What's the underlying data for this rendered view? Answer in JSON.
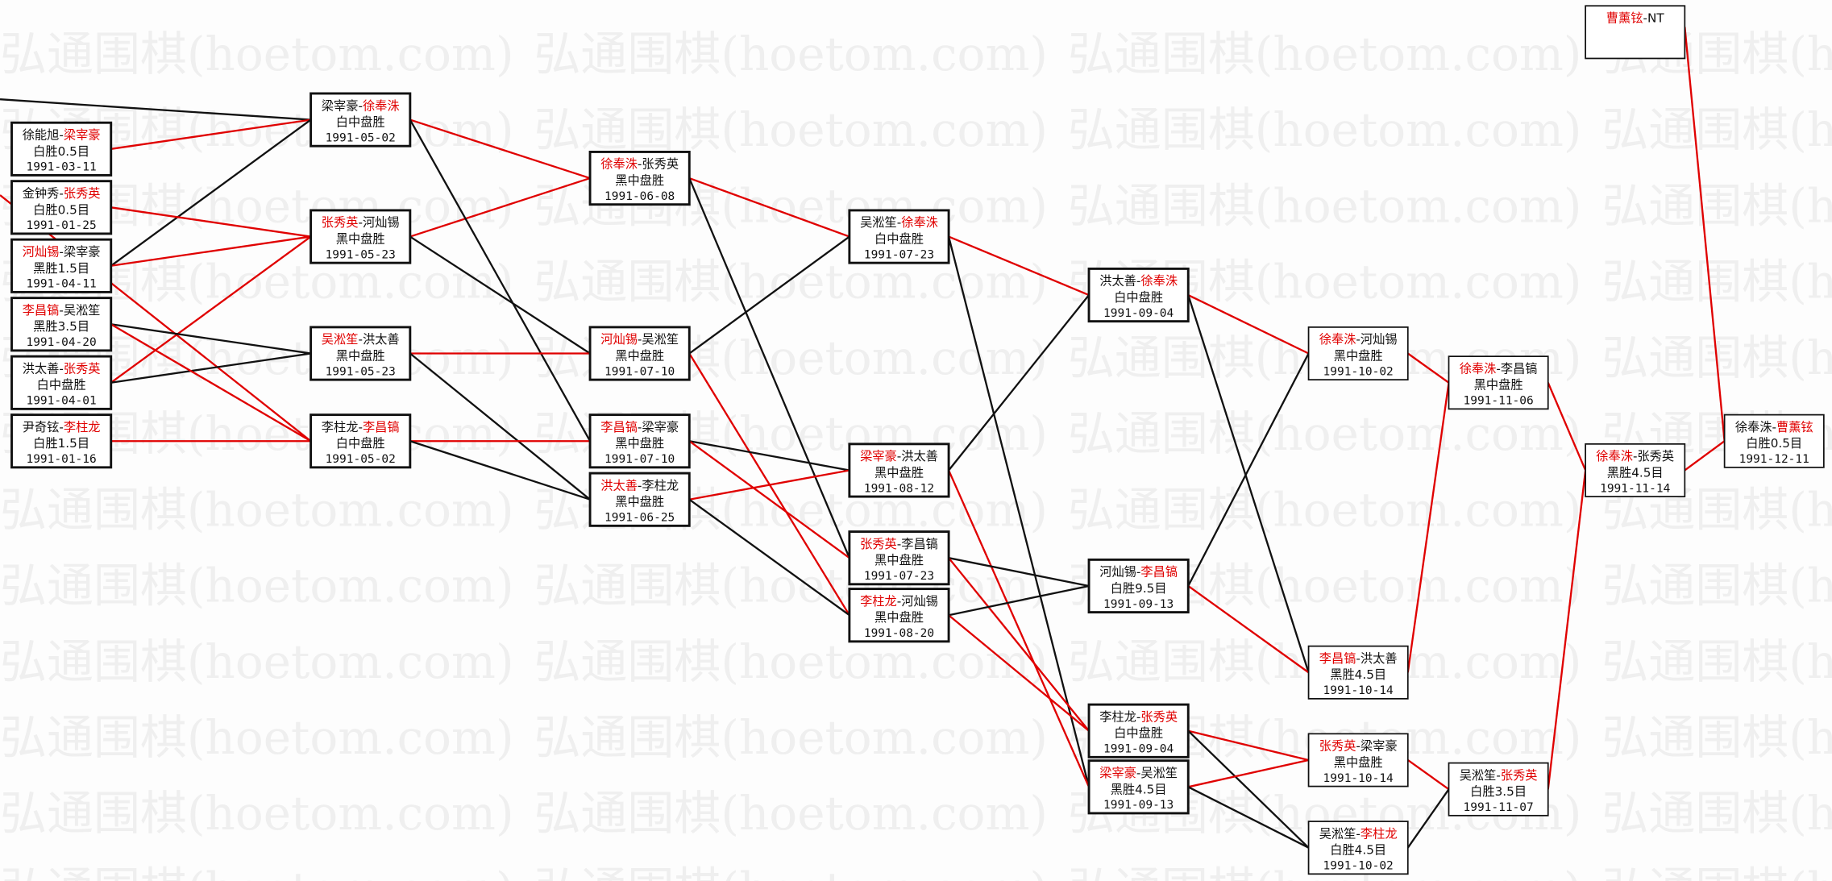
{
  "watermark": "弘通围棋(hoetom.com)",
  "colors": {
    "winner": "#e00000",
    "loser": "#111111",
    "watermark": "#efefef"
  },
  "games": [
    {
      "players": [
        "徐能旭",
        "梁宰豪"
      ],
      "winner": 1,
      "result": "白胜0.5目",
      "date": "1991-03-11"
    },
    {
      "players": [
        "金钟秀",
        "张秀英"
      ],
      "winner": 1,
      "result": "白胜0.5目",
      "date": "1991-01-25"
    },
    {
      "players": [
        "河灿锡",
        "梁宰豪"
      ],
      "winner": 0,
      "result": "黑胜1.5目",
      "date": "1991-04-11"
    },
    {
      "players": [
        "李昌镐",
        "吴淞笙"
      ],
      "winner": 0,
      "result": "黑胜3.5目",
      "date": "1991-04-20"
    },
    {
      "players": [
        "洪太善",
        "张秀英"
      ],
      "winner": 1,
      "result": "白中盘胜",
      "date": "1991-04-01"
    },
    {
      "players": [
        "尹奇铉",
        "李柱龙"
      ],
      "winner": 1,
      "result": "白胜1.5目",
      "date": "1991-01-16"
    },
    {
      "players": [
        "梁宰豪",
        "徐奉洙"
      ],
      "winner": 1,
      "result": "白中盘胜",
      "date": "1991-05-02"
    },
    {
      "players": [
        "张秀英",
        "河灿锡"
      ],
      "winner": 0,
      "result": "黑中盘胜",
      "date": "1991-05-23"
    },
    {
      "players": [
        "吴淞笙",
        "洪太善"
      ],
      "winner": 0,
      "result": "黑中盘胜",
      "date": "1991-05-23"
    },
    {
      "players": [
        "李柱龙",
        "李昌镐"
      ],
      "winner": 1,
      "result": "白中盘胜",
      "date": "1991-05-02"
    },
    {
      "players": [
        "徐奉洙",
        "张秀英"
      ],
      "winner": 0,
      "result": "黑中盘胜",
      "date": "1991-06-08"
    },
    {
      "players": [
        "河灿锡",
        "吴淞笙"
      ],
      "winner": 0,
      "result": "黑中盘胜",
      "date": "1991-07-10"
    },
    {
      "players": [
        "李昌镐",
        "梁宰豪"
      ],
      "winner": 0,
      "result": "黑中盘胜",
      "date": "1991-07-10"
    },
    {
      "players": [
        "洪太善",
        "李柱龙"
      ],
      "winner": 0,
      "result": "黑中盘胜",
      "date": "1991-06-25"
    },
    {
      "players": [
        "吴淞笙",
        "徐奉洙"
      ],
      "winner": 1,
      "result": "白中盘胜",
      "date": "1991-07-23"
    },
    {
      "players": [
        "梁宰豪",
        "洪太善"
      ],
      "winner": 0,
      "result": "黑中盘胜",
      "date": "1991-08-12"
    },
    {
      "players": [
        "张秀英",
        "李昌镐"
      ],
      "winner": 0,
      "result": "黑中盘胜",
      "date": "1991-07-23"
    },
    {
      "players": [
        "李柱龙",
        "河灿锡"
      ],
      "winner": 0,
      "result": "黑中盘胜",
      "date": "1991-08-20"
    },
    {
      "players": [
        "洪太善",
        "徐奉洙"
      ],
      "winner": 1,
      "result": "白中盘胜",
      "date": "1991-09-04"
    },
    {
      "players": [
        "河灿锡",
        "李昌镐"
      ],
      "winner": 1,
      "result": "白胜9.5目",
      "date": "1991-09-13"
    },
    {
      "players": [
        "李柱龙",
        "张秀英"
      ],
      "winner": 1,
      "result": "白中盘胜",
      "date": "1991-09-04"
    },
    {
      "players": [
        "梁宰豪",
        "吴淞笙"
      ],
      "winner": 0,
      "result": "黑胜4.5目",
      "date": "1991-09-13"
    },
    {
      "players": [
        "徐奉洙",
        "河灿锡"
      ],
      "winner": 0,
      "result": "黑中盘胜",
      "date": "1991-10-02"
    },
    {
      "players": [
        "李昌镐",
        "洪太善"
      ],
      "winner": 0,
      "result": "黑胜4.5目",
      "date": "1991-10-14"
    },
    {
      "players": [
        "张秀英",
        "梁宰豪"
      ],
      "winner": 0,
      "result": "黑中盘胜",
      "date": "1991-10-14"
    },
    {
      "players": [
        "吴淞笙",
        "李柱龙"
      ],
      "winner": 1,
      "result": "白胜4.5目",
      "date": "1991-10-02"
    },
    {
      "players": [
        "徐奉洙",
        "李昌镐"
      ],
      "winner": 0,
      "result": "黑中盘胜",
      "date": "1991-11-06"
    },
    {
      "players": [
        "吴淞笙",
        "张秀英"
      ],
      "winner": 1,
      "result": "白胜3.5目",
      "date": "1991-11-07"
    },
    {
      "players": [
        "曹薰铉",
        "NT"
      ],
      "winner": 0,
      "result": "",
      "date": ""
    },
    {
      "players": [
        "徐奉洙",
        "张秀英"
      ],
      "winner": 0,
      "result": "黑胜4.5目",
      "date": "1991-11-14"
    },
    {
      "players": [
        "徐奉洙",
        "曹薰铉"
      ],
      "winner": 1,
      "result": "白胜0.5目",
      "date": "1991-12-11"
    }
  ],
  "edges": [
    {
      "from": "offscreen",
      "to": 6,
      "kind": "loser"
    },
    {
      "from": "offscreen",
      "to": 9,
      "kind": "winner"
    },
    {
      "from": 0,
      "to": 6,
      "kind": "winner"
    },
    {
      "from": 2,
      "to": 6,
      "kind": "loser"
    },
    {
      "from": 1,
      "to": 7,
      "kind": "winner"
    },
    {
      "from": 2,
      "to": 7,
      "kind": "winner"
    },
    {
      "from": 4,
      "to": 7,
      "kind": "winner"
    },
    {
      "from": 3,
      "to": 8,
      "kind": "loser"
    },
    {
      "from": 4,
      "to": 8,
      "kind": "loser"
    },
    {
      "from": 3,
      "to": 9,
      "kind": "winner"
    },
    {
      "from": 5,
      "to": 9,
      "kind": "winner"
    },
    {
      "from": 6,
      "to": 10,
      "kind": "winner"
    },
    {
      "from": 7,
      "to": 10,
      "kind": "winner"
    },
    {
      "from": 6,
      "to": 12,
      "kind": "loser"
    },
    {
      "from": 7,
      "to": 11,
      "kind": "loser"
    },
    {
      "from": 8,
      "to": 11,
      "kind": "winner"
    },
    {
      "from": 8,
      "to": 13,
      "kind": "loser"
    },
    {
      "from": 9,
      "to": 12,
      "kind": "winner"
    },
    {
      "from": 9,
      "to": 13,
      "kind": "loser"
    },
    {
      "from": 10,
      "to": 14,
      "kind": "winner"
    },
    {
      "from": 10,
      "to": 16,
      "kind": "loser"
    },
    {
      "from": 11,
      "to": 14,
      "kind": "loser"
    },
    {
      "from": 11,
      "to": 17,
      "kind": "winner"
    },
    {
      "from": 12,
      "to": 15,
      "kind": "loser"
    },
    {
      "from": 12,
      "to": 16,
      "kind": "winner"
    },
    {
      "from": 13,
      "to": 15,
      "kind": "winner"
    },
    {
      "from": 13,
      "to": 17,
      "kind": "loser"
    },
    {
      "from": 14,
      "to": 18,
      "kind": "winner"
    },
    {
      "from": 14,
      "to": 21,
      "kind": "loser"
    },
    {
      "from": 15,
      "to": 18,
      "kind": "loser"
    },
    {
      "from": 15,
      "to": 21,
      "kind": "winner"
    },
    {
      "from": 16,
      "to": 19,
      "kind": "loser"
    },
    {
      "from": 16,
      "to": 20,
      "kind": "winner"
    },
    {
      "from": 17,
      "to": 19,
      "kind": "loser"
    },
    {
      "from": 17,
      "to": 20,
      "kind": "winner"
    },
    {
      "from": 18,
      "to": 22,
      "kind": "winner"
    },
    {
      "from": 18,
      "to": 23,
      "kind": "loser"
    },
    {
      "from": 19,
      "to": 22,
      "kind": "loser"
    },
    {
      "from": 19,
      "to": 23,
      "kind": "winner"
    },
    {
      "from": 20,
      "to": 24,
      "kind": "winner"
    },
    {
      "from": 20,
      "to": 25,
      "kind": "loser"
    },
    {
      "from": 21,
      "to": 24,
      "kind": "winner"
    },
    {
      "from": 21,
      "to": 25,
      "kind": "loser"
    },
    {
      "from": 22,
      "to": 26,
      "kind": "winner"
    },
    {
      "from": 23,
      "to": 26,
      "kind": "winner"
    },
    {
      "from": 24,
      "to": 27,
      "kind": "winner"
    },
    {
      "from": 25,
      "to": 27,
      "kind": "loser"
    },
    {
      "from": 26,
      "to": 29,
      "kind": "winner"
    },
    {
      "from": 27,
      "to": 29,
      "kind": "winner"
    },
    {
      "from": 28,
      "to": 30,
      "kind": "winner"
    },
    {
      "from": 29,
      "to": 30,
      "kind": "winner"
    }
  ]
}
